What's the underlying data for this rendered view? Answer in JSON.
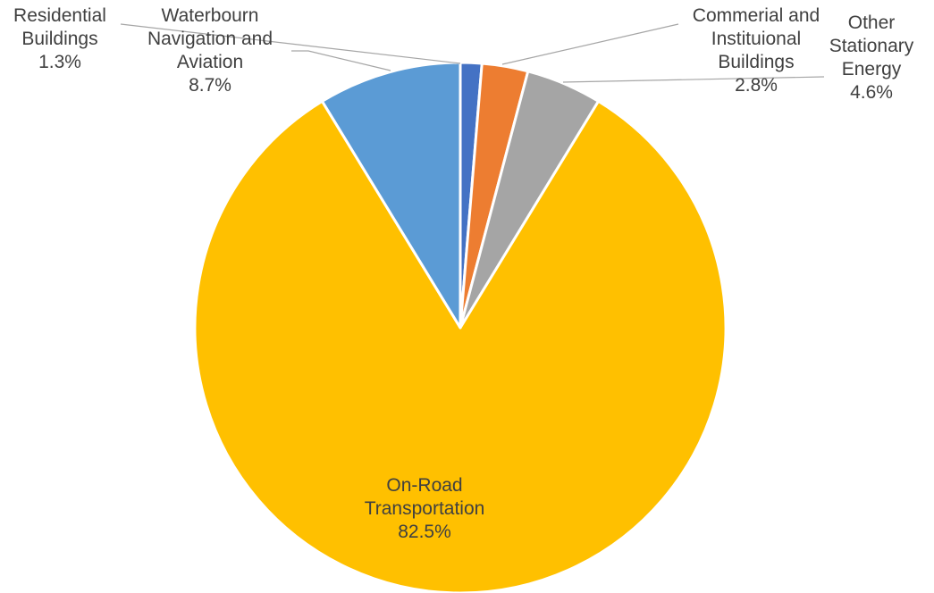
{
  "chart_data": {
    "type": "pie",
    "title": "",
    "categories": [
      "Residential Buildings",
      "Commerial and Instituional Buildings",
      "Other Stationary Energy",
      "On-Road Transportation",
      "Waterbourn Navigation and Aviation"
    ],
    "values": [
      1.3,
      2.8,
      4.6,
      82.5,
      8.7
    ],
    "value_labels": [
      "1.3%",
      "2.8%",
      "4.6%",
      "82.5%",
      "8.7%"
    ],
    "label_lines": [
      [
        "Residential",
        "Buildings"
      ],
      [
        "Commerial and",
        "Instituional",
        "Buildings"
      ],
      [
        "Other",
        "Stationary",
        "Energy"
      ],
      [
        "On-Road",
        "Transportation"
      ],
      [
        "Waterbourn",
        "Navigation and",
        "Aviation"
      ]
    ],
    "colors": [
      "#4472C4",
      "#ED7D31",
      "#A5A5A5",
      "#FFC000",
      "#5B9BD5"
    ],
    "start_angle_deg": 0,
    "direction": "clockwise",
    "legend": "none"
  }
}
